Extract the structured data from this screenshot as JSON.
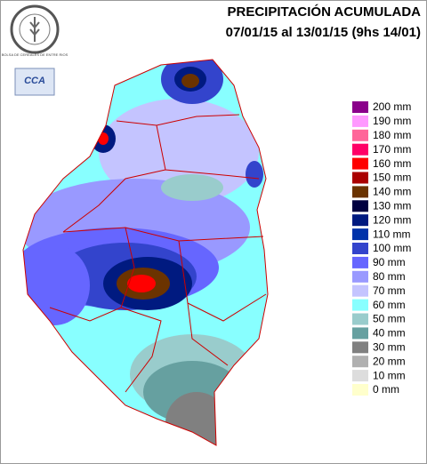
{
  "header": {
    "title": "PRECIPITACIÓN ACUMULADA",
    "subtitle": "07/01/15 al 13/01/15 (9hs 14/01)"
  },
  "logos": {
    "bolsa": "BOLSA DE CEREALES DE ENTRE RIOS",
    "cca": "CCA"
  },
  "legend": {
    "entries": [
      {
        "label": "200 mm",
        "color": "#8b008b"
      },
      {
        "label": "190 mm",
        "color": "#ff99ff"
      },
      {
        "label": "180 mm",
        "color": "#ff6699"
      },
      {
        "label": "170 mm",
        "color": "#ff0066"
      },
      {
        "label": "160 mm",
        "color": "#ff0000"
      },
      {
        "label": "150 mm",
        "color": "#aa0000"
      },
      {
        "label": "140 mm",
        "color": "#6b3300"
      },
      {
        "label": "130 mm",
        "color": "#000040"
      },
      {
        "label": "120 mm",
        "color": "#001a80"
      },
      {
        "label": "110 mm",
        "color": "#0033aa"
      },
      {
        "label": "100 mm",
        "color": "#3344cc"
      },
      {
        "label": "90 mm",
        "color": "#6666ff"
      },
      {
        "label": "80 mm",
        "color": "#9999ff"
      },
      {
        "label": "70 mm",
        "color": "#c4c4ff"
      },
      {
        "label": "60 mm",
        "color": "#88ffff"
      },
      {
        "label": "50 mm",
        "color": "#99cccc"
      },
      {
        "label": "40 mm",
        "color": "#66a0a0"
      },
      {
        "label": "30 mm",
        "color": "#808080"
      },
      {
        "label": "20 mm",
        "color": "#b0b0b0"
      },
      {
        "label": "10 mm",
        "color": "#dddddd"
      },
      {
        "label": "0 mm",
        "color": "#ffffcc"
      }
    ]
  }
}
